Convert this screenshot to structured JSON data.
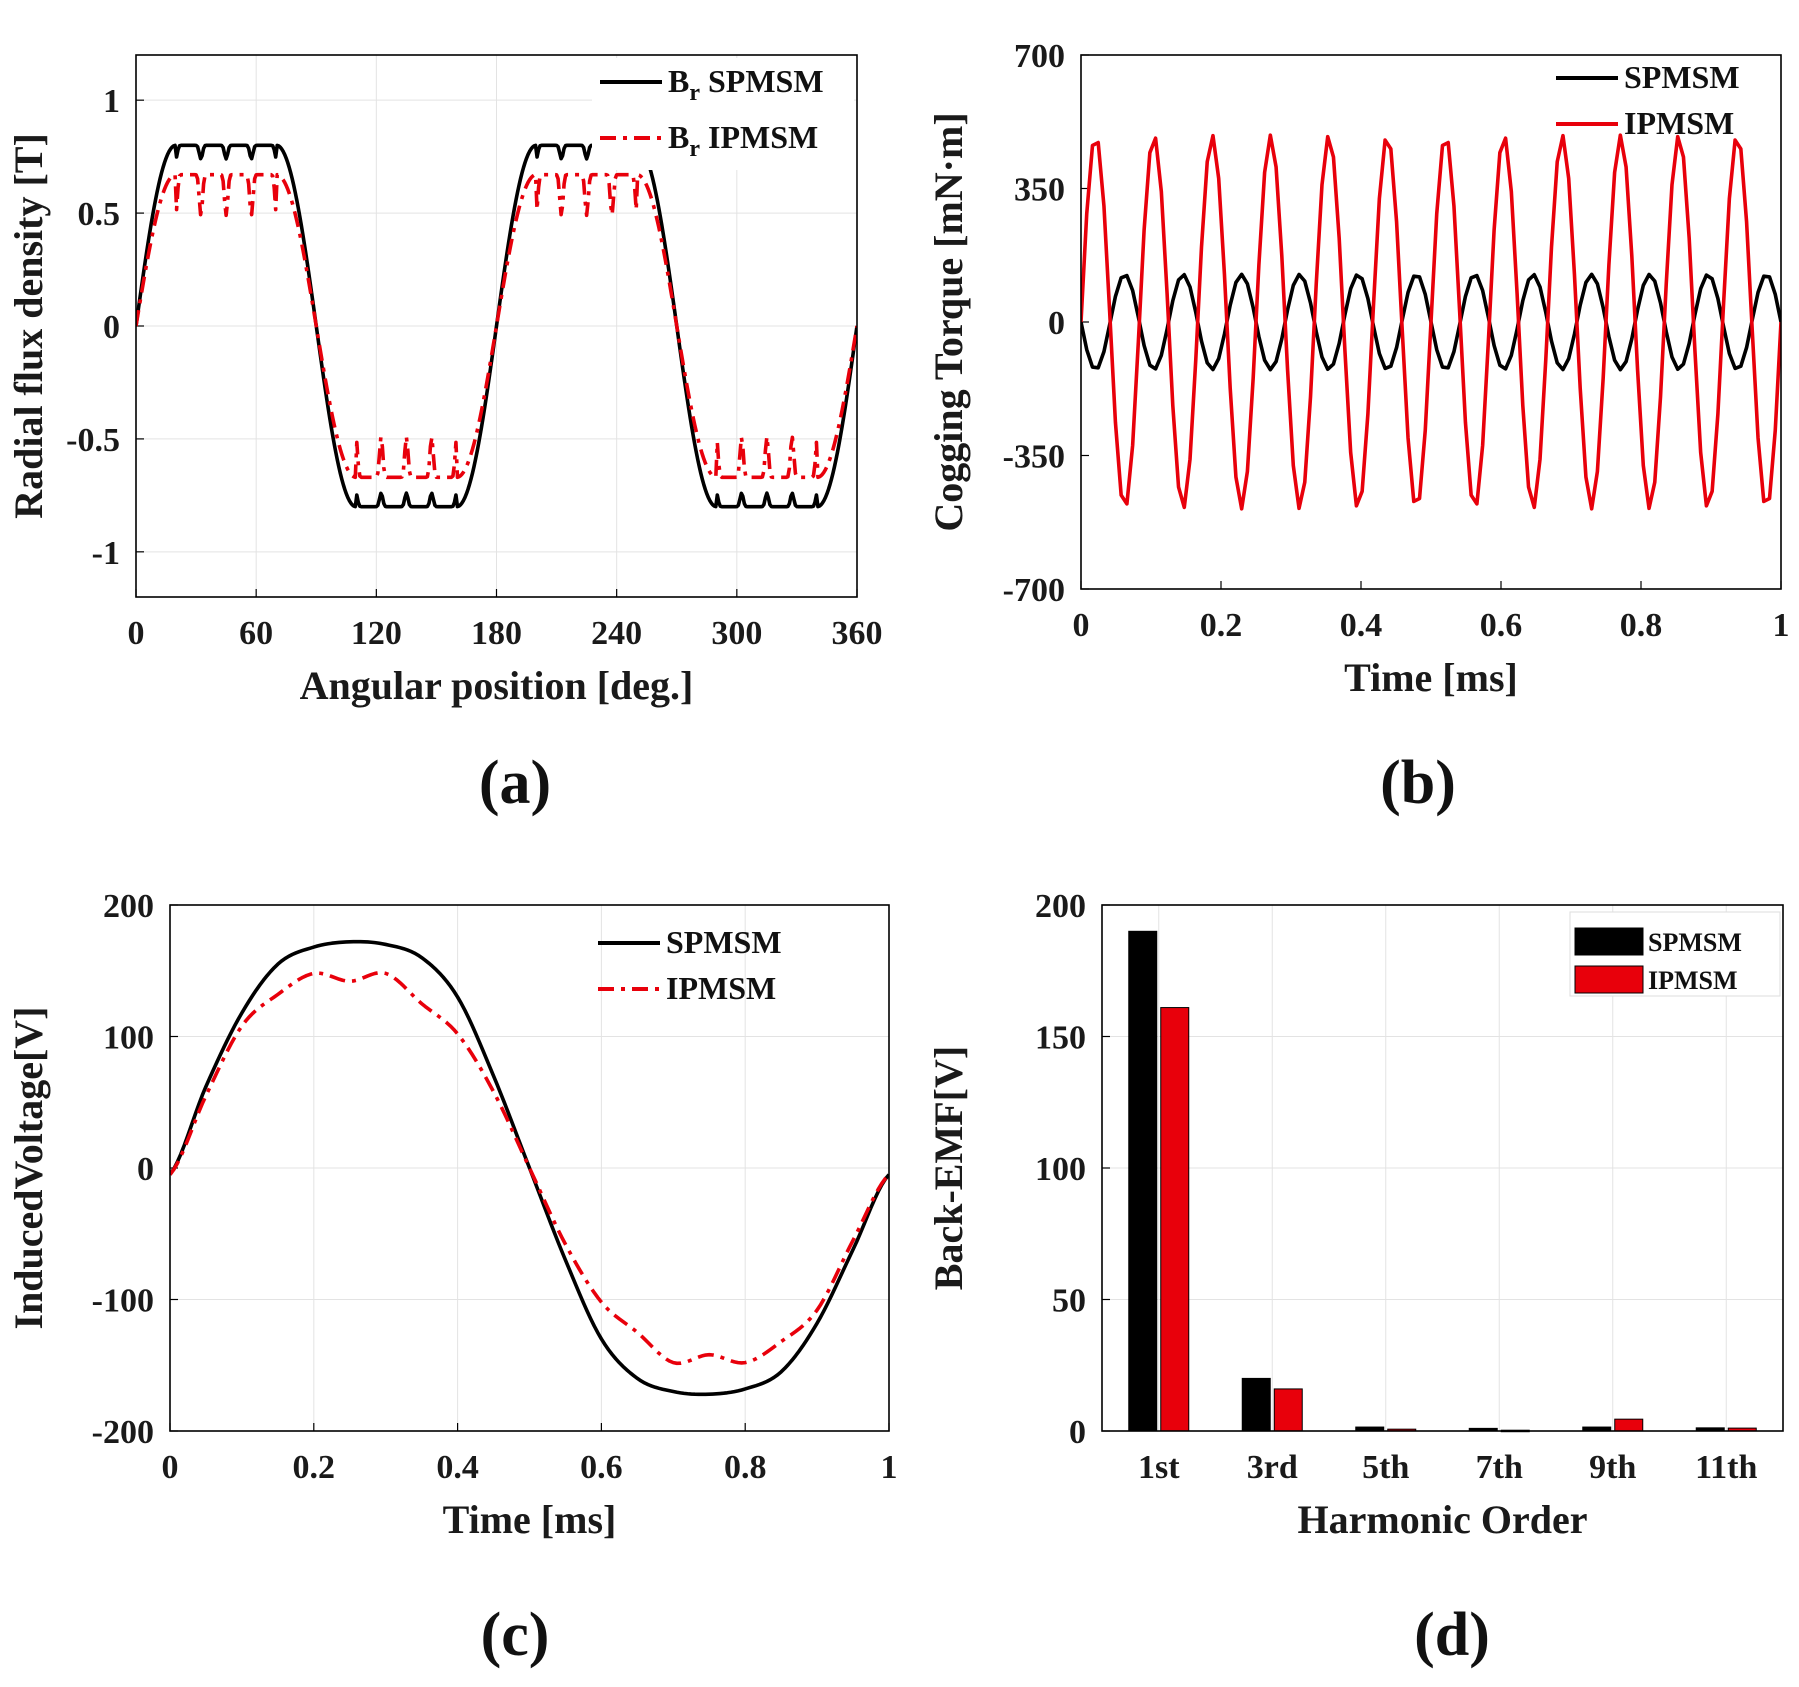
{
  "chart_data": [
    {
      "id": "a",
      "type": "line",
      "panel_label": "(a)",
      "xlabel": "Angular position [deg.]",
      "ylabel": "Radial flux density [T]",
      "xlim": [
        0,
        360
      ],
      "ylim": [
        -1.2,
        1.2
      ],
      "xticks": [
        0,
        60,
        120,
        180,
        240,
        300,
        360
      ],
      "xtick_labels": [
        "0",
        "60",
        "120",
        "180",
        "240",
        "300",
        "360"
      ],
      "yticks": [
        -1,
        -0.5,
        0,
        0.5,
        1
      ],
      "ytick_labels": [
        "-1",
        "-0.5",
        "0",
        "0.5",
        "1"
      ],
      "grid": true,
      "legend_position": "top-right",
      "series": [
        {
          "name": "Br SPMSM",
          "legend_main": "B",
          "legend_sub": "r",
          "legend_rest": " SPMSM",
          "color": "#000000",
          "dash": "solid",
          "peak": 0.8,
          "slot_ripple": 0.06,
          "x": [
            0,
            15,
            30,
            45,
            60,
            75,
            90,
            105,
            120,
            135,
            150,
            165,
            180,
            195,
            210,
            225,
            240,
            255,
            270,
            285,
            300,
            315,
            330,
            345,
            360
          ],
          "y": [
            0,
            0.58,
            0.75,
            0.79,
            0.77,
            0.5,
            0,
            -0.58,
            -0.75,
            -0.79,
            -0.77,
            -0.5,
            0,
            0.58,
            0.75,
            0.79,
            0.77,
            0.5,
            0,
            -0.58,
            -0.75,
            -0.79,
            -0.77,
            -0.5,
            0
          ]
        },
        {
          "name": "Br IPMSM",
          "legend_main": "B",
          "legend_sub": "r",
          "legend_rest": " IPMSM",
          "color": "#e8000b",
          "dash": "dashdot",
          "peak": 0.67,
          "slot_ripple": 0.18,
          "x": [
            0,
            15,
            30,
            45,
            60,
            75,
            90,
            105,
            120,
            135,
            150,
            165,
            180,
            195,
            210,
            225,
            240,
            255,
            270,
            285,
            300,
            315,
            330,
            345,
            360
          ],
          "y": [
            0,
            0.5,
            0.62,
            0.6,
            0.62,
            0.5,
            0,
            -0.5,
            -0.62,
            -0.6,
            -0.62,
            -0.5,
            0,
            0.5,
            0.62,
            0.6,
            0.62,
            0.5,
            0,
            -0.5,
            -0.62,
            -0.6,
            -0.62,
            -0.5,
            0
          ]
        }
      ]
    },
    {
      "id": "b",
      "type": "line",
      "panel_label": "(b)",
      "xlabel": "Time [ms]",
      "ylabel": "Cogging Torque [mN·m]",
      "xlim": [
        0,
        1
      ],
      "ylim": [
        -700,
        700
      ],
      "xticks": [
        0,
        0.2,
        0.4,
        0.6,
        0.8,
        1
      ],
      "xtick_labels": [
        "0",
        "0.2",
        "0.4",
        "0.6",
        "0.8",
        "1"
      ],
      "yticks": [
        -700,
        -350,
        0,
        350,
        700
      ],
      "ytick_labels": [
        "-700",
        "-350",
        "0",
        "350",
        "700"
      ],
      "grid": false,
      "legend_position": "top-right",
      "series": [
        {
          "name": "SPMSM",
          "color": "#000000",
          "dash": "solid",
          "amplitude": 125,
          "cycles": 12,
          "phase_sign": -1
        },
        {
          "name": "IPMSM",
          "color": "#e8000b",
          "dash": "solid",
          "amplitude": 490,
          "cycles": 12,
          "phase_sign": 1
        }
      ]
    },
    {
      "id": "c",
      "type": "line",
      "panel_label": "(c)",
      "xlabel": "Time [ms]",
      "ylabel": "InducedVoltage[V]",
      "xlim": [
        0,
        1
      ],
      "ylim": [
        -200,
        200
      ],
      "xticks": [
        0,
        0.2,
        0.4,
        0.6,
        0.8,
        1
      ],
      "xtick_labels": [
        "0",
        "0.2",
        "0.4",
        "0.6",
        "0.8",
        "1"
      ],
      "yticks": [
        -200,
        -100,
        0,
        100,
        200
      ],
      "ytick_labels": [
        "-200",
        "-100",
        "0",
        "100",
        "200"
      ],
      "grid": true,
      "legend_position": "top-right",
      "series": [
        {
          "name": "SPMSM",
          "color": "#000000",
          "dash": "solid",
          "x": [
            0,
            0.05,
            0.1,
            0.15,
            0.2,
            0.25,
            0.3,
            0.35,
            0.4,
            0.45,
            0.5,
            0.55,
            0.6,
            0.65,
            0.7,
            0.75,
            0.8,
            0.85,
            0.9,
            0.95,
            1
          ],
          "y": [
            -5,
            62,
            118,
            155,
            168,
            172,
            170,
            160,
            130,
            70,
            0,
            -70,
            -130,
            -160,
            -170,
            -172,
            -168,
            -155,
            -118,
            -62,
            -5
          ]
        },
        {
          "name": "IPMSM",
          "color": "#e8000b",
          "dash": "dashdot",
          "x": [
            0,
            0.05,
            0.1,
            0.15,
            0.2,
            0.25,
            0.3,
            0.35,
            0.4,
            0.45,
            0.5,
            0.55,
            0.6,
            0.65,
            0.7,
            0.75,
            0.8,
            0.85,
            0.9,
            0.95,
            1
          ],
          "y": [
            -5,
            55,
            108,
            132,
            148,
            142,
            148,
            125,
            102,
            58,
            0,
            -58,
            -102,
            -125,
            -148,
            -142,
            -148,
            -132,
            -108,
            -55,
            -5
          ]
        }
      ]
    },
    {
      "id": "d",
      "type": "bar",
      "panel_label": "(d)",
      "xlabel": "Harmonic Order",
      "ylabel": "Back-EMF[V]",
      "categories": [
        "1st",
        "3rd",
        "5th",
        "7th",
        "9th",
        "11th"
      ],
      "ylim": [
        0,
        200
      ],
      "yticks": [
        0,
        50,
        100,
        150,
        200
      ],
      "ytick_labels": [
        "0",
        "50",
        "100",
        "150",
        "200"
      ],
      "grid": true,
      "legend_position": "top-right",
      "series": [
        {
          "name": "SPMSM",
          "color": "#000000",
          "values": [
            190,
            20,
            1.5,
            1,
            1.5,
            1.2
          ]
        },
        {
          "name": "IPMSM",
          "color": "#e8000b",
          "values": [
            161,
            16,
            0.7,
            0.3,
            4.5,
            1.1
          ]
        }
      ]
    }
  ]
}
